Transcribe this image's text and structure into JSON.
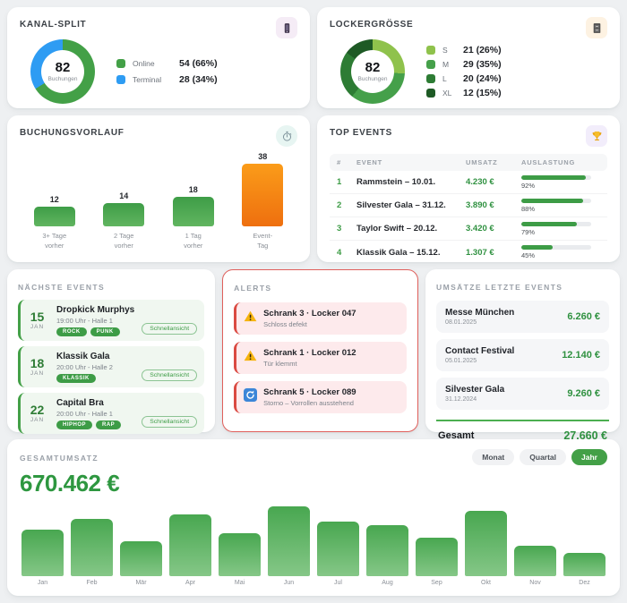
{
  "kanal_split": {
    "title": "KANAL-SPLIT",
    "center_value": "82",
    "center_label": "Buchungen",
    "segments": [
      {
        "label": "Online",
        "display": "54 (66%)",
        "pct": 66,
        "color": "#43a047"
      },
      {
        "label": "Terminal",
        "display": "28 (34%)",
        "pct": 34,
        "color": "#2e9cf3"
      }
    ]
  },
  "lockergroesse": {
    "title": "LOCKERGRÖSSE",
    "center_value": "82",
    "center_label": "Buchungen",
    "segments": [
      {
        "label": "S",
        "display": "21 (26%)",
        "pct": 26,
        "color": "#8fc24c"
      },
      {
        "label": "M",
        "display": "29 (35%)",
        "pct": 35,
        "color": "#45a04a"
      },
      {
        "label": "L",
        "display": "20 (24%)",
        "pct": 24,
        "color": "#2d7c34"
      },
      {
        "label": "XL",
        "display": "12 (15%)",
        "pct": 15,
        "color": "#1e5a25"
      }
    ]
  },
  "buchungsvorlauf": {
    "title": "BUCHUNGSVORLAUF",
    "max_value": 38,
    "bars": [
      {
        "value": 12,
        "label_lines": [
          "3+ Tage",
          "vorher"
        ],
        "color": "green"
      },
      {
        "value": 14,
        "label_lines": [
          "2 Tage",
          "vorher"
        ],
        "color": "green"
      },
      {
        "value": 18,
        "label_lines": [
          "1 Tag",
          "vorher"
        ],
        "color": "green"
      },
      {
        "value": 38,
        "label_lines": [
          "Event-",
          "Tag"
        ],
        "color": "orange"
      }
    ]
  },
  "top_events": {
    "title": "TOP EVENTS",
    "columns": [
      "#",
      "EVENT",
      "UMSATZ",
      "AUSLASTUNG"
    ],
    "rows": [
      {
        "rank": "1",
        "event": "Rammstein – 10.01.",
        "umsatz": "4.230 €",
        "auslastung": 92
      },
      {
        "rank": "2",
        "event": "Silvester Gala – 31.12.",
        "umsatz": "3.890 €",
        "auslastung": 88
      },
      {
        "rank": "3",
        "event": "Taylor Swift – 20.12.",
        "umsatz": "3.420 €",
        "auslastung": 79
      },
      {
        "rank": "4",
        "event": "Klassik Gala – 15.12.",
        "umsatz": "1.307 €",
        "auslastung": 45
      }
    ]
  },
  "naechste_events": {
    "title": "NÄCHSTE EVENTS",
    "quick_view_label": "Schnellansicht",
    "events": [
      {
        "day": "15",
        "month": "JAN",
        "name": "Dropkick Murphys",
        "details": "19:00 Uhr - Halle 1",
        "tags": [
          "ROCK",
          "PUNK"
        ]
      },
      {
        "day": "18",
        "month": "JAN",
        "name": "Klassik Gala",
        "details": "20:00 Uhr - Halle 2",
        "tags": [
          "KLASSIK"
        ]
      },
      {
        "day": "22",
        "month": "JAN",
        "name": "Capital Bra",
        "details": "20:00 Uhr - Halle 1",
        "tags": [
          "HIPHOP",
          "RAP"
        ]
      }
    ]
  },
  "alerts": {
    "title": "ALERTS",
    "items": [
      {
        "icon": "warning",
        "title": "Schrank 3 · Locker 047",
        "subtitle": "Schloss defekt"
      },
      {
        "icon": "warning",
        "title": "Schrank 1 · Locker 012",
        "subtitle": "Tür klemmt"
      },
      {
        "icon": "refresh",
        "title": "Schrank 5 · Locker 089",
        "subtitle": "Storno – Vorrollen ausstehend"
      }
    ]
  },
  "umsaetze": {
    "title": "UMSÄTZE LETZTE EVENTS",
    "rows": [
      {
        "name": "Messe München",
        "date": "08.01.2025",
        "amount": "6.260 €"
      },
      {
        "name": "Contact Festival",
        "date": "05.01.2025",
        "amount": "12.140 €"
      },
      {
        "name": "Silvester Gala",
        "date": "31.12.2024",
        "amount": "9.260 €"
      }
    ],
    "total_label": "Gesamt",
    "total_amount": "27.660 €"
  },
  "gesamtumsatz": {
    "title": "GESAMTUMSATZ",
    "total": "670.462 €",
    "period_buttons": [
      {
        "label": "Monat",
        "active": false
      },
      {
        "label": "Quartal",
        "active": false
      },
      {
        "label": "Jahr",
        "active": true
      }
    ],
    "months": [
      "Jan",
      "Feb",
      "Mär",
      "Apr",
      "Mai",
      "Jun",
      "Jul",
      "Aug",
      "Sep",
      "Okt",
      "Nov",
      "Dez"
    ],
    "values_rel": [
      67,
      82,
      50,
      88,
      62,
      100,
      78,
      73,
      55,
      94,
      44,
      33
    ]
  }
}
